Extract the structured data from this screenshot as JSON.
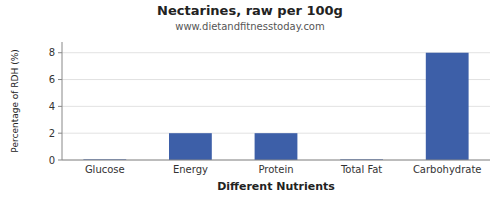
{
  "chart_data": {
    "type": "bar",
    "title": "Nectarines, raw per 100g",
    "subtitle": "www.dietandfitnesstoday.com",
    "xlabel": "Different Nutrients",
    "ylabel": "Percentage of RDH (%)",
    "categories": [
      "Glucose",
      "Energy",
      "Protein",
      "Total Fat",
      "Carbohydrate"
    ],
    "values": [
      0.05,
      2.0,
      2.0,
      0.05,
      8.0
    ],
    "color": "#3d5fa8",
    "ylim": [
      0,
      8.8
    ],
    "yticks": [
      0,
      2,
      4,
      6,
      8
    ],
    "grid": true
  }
}
